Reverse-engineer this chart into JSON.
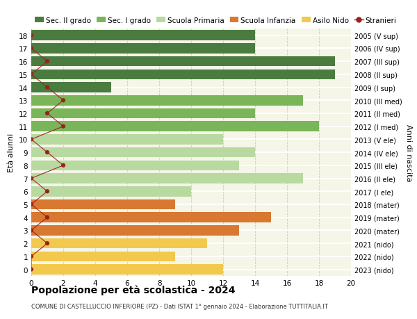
{
  "ages": [
    18,
    17,
    16,
    15,
    14,
    13,
    12,
    11,
    10,
    9,
    8,
    7,
    6,
    5,
    4,
    3,
    2,
    1,
    0
  ],
  "years_labels": [
    "2005 (V sup)",
    "2006 (IV sup)",
    "2007 (III sup)",
    "2008 (II sup)",
    "2009 (I sup)",
    "2010 (III med)",
    "2011 (II med)",
    "2012 (I med)",
    "2013 (V ele)",
    "2014 (IV ele)",
    "2015 (III ele)",
    "2016 (II ele)",
    "2017 (I ele)",
    "2018 (mater)",
    "2019 (mater)",
    "2020 (mater)",
    "2021 (nido)",
    "2022 (nido)",
    "2023 (nido)"
  ],
  "bar_values": [
    14,
    14,
    19,
    19,
    5,
    17,
    14,
    18,
    12,
    14,
    13,
    17,
    10,
    9,
    15,
    13,
    11,
    9,
    12
  ],
  "bar_colors": [
    "#4a7c3f",
    "#4a7c3f",
    "#4a7c3f",
    "#4a7c3f",
    "#4a7c3f",
    "#7ab55a",
    "#7ab55a",
    "#7ab55a",
    "#b8d9a0",
    "#b8d9a0",
    "#b8d9a0",
    "#b8d9a0",
    "#b8d9a0",
    "#d97830",
    "#d97830",
    "#d97830",
    "#f2c94c",
    "#f2c94c",
    "#f2c94c"
  ],
  "stranieri_values": [
    0,
    0,
    1,
    0,
    1,
    2,
    1,
    2,
    0,
    1,
    2,
    0,
    1,
    0,
    1,
    0,
    1,
    0,
    0
  ],
  "stranieri_color": "#9b2020",
  "xlim": [
    0,
    20
  ],
  "ylim": [
    -0.5,
    18.5
  ],
  "ylabel": "Età alunni",
  "ylabel_right": "Anni di nascita",
  "title": "Popolazione per età scolastica - 2024",
  "subtitle": "COMUNE DI CASTELLUCCIO INFERIORE (PZ) - Dati ISTAT 1° gennaio 2024 - Elaborazione TUTTITALIA.IT",
  "legend_items": [
    {
      "label": "Sec. II grado",
      "color": "#4a7c3f"
    },
    {
      "label": "Sec. I grado",
      "color": "#7ab55a"
    },
    {
      "label": "Scuola Primaria",
      "color": "#b8d9a0"
    },
    {
      "label": "Scuola Infanzia",
      "color": "#d97830"
    },
    {
      "label": "Asilo Nido",
      "color": "#f2c94c"
    },
    {
      "label": "Stranieri",
      "color": "#9b2020"
    }
  ],
  "background_color": "#ffffff",
  "plot_bg_color": "#f5f5e8",
  "grid_color": "#cccccc",
  "xticks": [
    0,
    2,
    4,
    6,
    8,
    10,
    12,
    14,
    16,
    18,
    20
  ]
}
